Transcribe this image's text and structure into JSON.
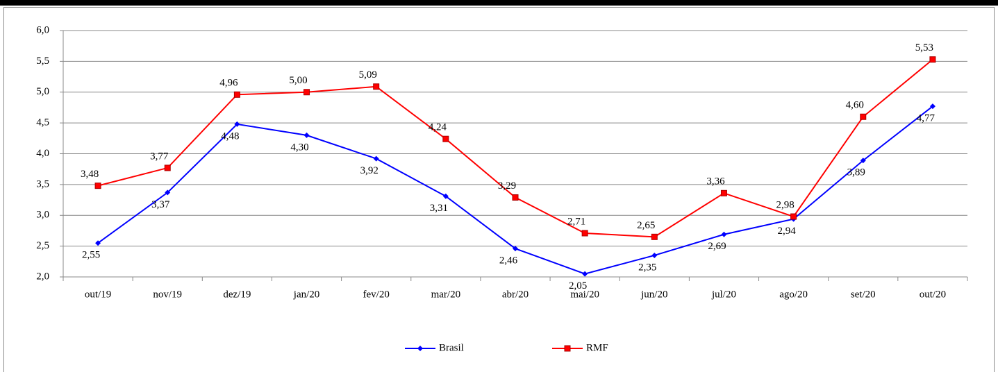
{
  "chart_data": {
    "type": "line",
    "categories": [
      "out/19",
      "nov/19",
      "dez/19",
      "jan/20",
      "fev/20",
      "mar/20",
      "abr/20",
      "mai/20",
      "jun/20",
      "jul/20",
      "ago/20",
      "set/20",
      "out/20"
    ],
    "series": [
      {
        "name": "Brasil",
        "color": "#0000ff",
        "marker": "diamond",
        "values": [
          2.55,
          3.37,
          4.48,
          4.3,
          3.92,
          3.31,
          2.46,
          2.05,
          2.35,
          2.69,
          2.94,
          3.89,
          4.77
        ],
        "value_labels": [
          "2,55",
          "3,37",
          "4,48",
          "4,30",
          "3,92",
          "3,31",
          "2,46",
          "2,05",
          "2,35",
          "2,69",
          "2,94",
          "3,89",
          "4,77"
        ]
      },
      {
        "name": "RMF",
        "color": "#ff0000",
        "marker": "square",
        "values": [
          3.48,
          3.77,
          4.96,
          5.0,
          5.09,
          4.24,
          3.29,
          2.71,
          2.65,
          3.36,
          2.98,
          4.6,
          5.53
        ],
        "value_labels": [
          "3,48",
          "3,77",
          "4,96",
          "5,00",
          "5,09",
          "4,24",
          "3,29",
          "2,71",
          "2,65",
          "3,36",
          "2,98",
          "4,60",
          "5,53"
        ]
      }
    ],
    "ylim": [
      2.0,
      6.0
    ],
    "yticks": [
      {
        "value": 2.0,
        "label": "2,0"
      },
      {
        "value": 2.5,
        "label": "2,5"
      },
      {
        "value": 3.0,
        "label": "3,0"
      },
      {
        "value": 3.5,
        "label": "3,5"
      },
      {
        "value": 4.0,
        "label": "4,0"
      },
      {
        "value": 4.5,
        "label": "4,5"
      },
      {
        "value": 5.0,
        "label": "5,0"
      },
      {
        "value": 5.5,
        "label": "5,5"
      },
      {
        "value": 6.0,
        "label": "6,0"
      }
    ],
    "grid": true,
    "legend": "bottom"
  }
}
